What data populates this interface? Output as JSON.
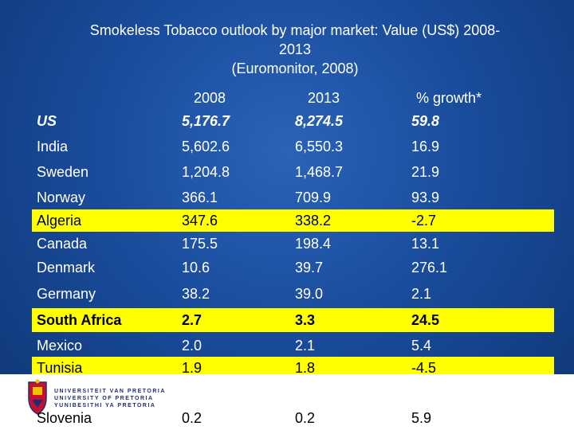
{
  "title_line1": "Smokeless Tobacco outlook by major market: Value (US$) 2008-",
  "title_line2": "2013",
  "title_line3": "(Euromonitor, 2008)",
  "headers": {
    "y2008": "2008",
    "y2013": "2013",
    "growth": "% growth*"
  },
  "highlight_color": "#ffff00",
  "rows": [
    {
      "country": "US",
      "v2008": "5,176.7",
      "v2013": "8,274.5",
      "growth": "59.8"
    },
    {
      "country": "India",
      "v2008": "5,602.6",
      "v2013": "6,550.3",
      "growth": "16.9"
    },
    {
      "country": "Sweden",
      "v2008": "1,204.8",
      "v2013": "1,468.7",
      "growth": "21.9"
    },
    {
      "country": "Norway",
      "v2008": "366.1",
      "v2013": "709.9",
      "growth": "93.9"
    },
    {
      "country": "Algeria",
      "v2008": "347.6",
      "v2013": "338.2",
      "growth": "-2.7"
    },
    {
      "country": "Canada",
      "v2008": "175.5",
      "v2013": "198.4",
      "growth": "13.1"
    },
    {
      "country": "Denmark",
      "v2008": "10.6",
      "v2013": "39.7",
      "growth": "276.1"
    },
    {
      "country": "Germany",
      "v2008": "38.2",
      "v2013": "39.0",
      "growth": "2.1"
    },
    {
      "country": "South Africa",
      "v2008": "2.7",
      "v2013": "3.3",
      "growth": "24.5"
    },
    {
      "country": "Mexico",
      "v2008": "2.0",
      "v2013": "2.1",
      "growth": "5.4"
    },
    {
      "country": "Tunisia",
      "v2008": "1.9",
      "v2013": "1.8",
      "growth": "-4.5"
    },
    {
      "country": "Slovenia",
      "v2008": "0.2",
      "v2013": "0.2",
      "growth": "5.9"
    }
  ],
  "footer": {
    "uni_line1": "UNIVERSITEIT VAN PRETORIA",
    "uni_line2": "UNIVERSITY OF PRETORIA",
    "uni_line3": "YUNIBESITHI YA PRETORIA"
  }
}
